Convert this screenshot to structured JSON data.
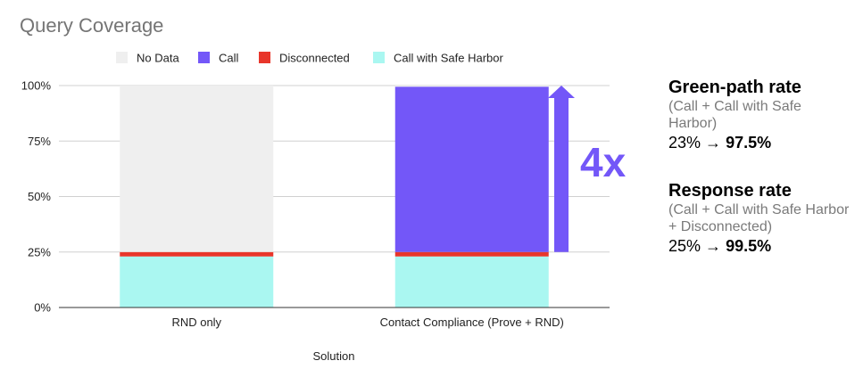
{
  "chart_data": {
    "type": "bar",
    "stacked": true,
    "title": "Query Coverage",
    "xlabel": "Solution",
    "ylabel": "",
    "ylim": [
      0,
      100
    ],
    "yticks": [
      "0%",
      "25%",
      "50%",
      "75%",
      "100%"
    ],
    "categories": [
      "RND only",
      "Contact Compliance (Prove + RND)"
    ],
    "series": [
      {
        "name": "Call with Safe Harbor",
        "color": "#aaf7f1",
        "values": [
          23,
          23
        ]
      },
      {
        "name": "Disconnected",
        "color": "#e8362b",
        "values": [
          2,
          2
        ]
      },
      {
        "name": "Call",
        "color": "#7357f8",
        "values": [
          0,
          74.5
        ]
      },
      {
        "name": "No Data",
        "color": "#efefef",
        "values": [
          75,
          0.5
        ]
      }
    ],
    "legend": {
      "position": "top",
      "order": [
        "No Data",
        "Call",
        "Disconnected",
        "Call with Safe Harbor"
      ]
    },
    "annotation": {
      "text": "4x",
      "color": "#7357f8",
      "arrow_from": 25,
      "arrow_to": 100
    },
    "grid": true
  },
  "metrics": [
    {
      "title": "Green-path rate",
      "subtitle": "(Call + Call with Safe Harbor)",
      "from": "23%",
      "arrow": "→",
      "to": "97.5%"
    },
    {
      "title": "Response rate",
      "subtitle": "(Call + Call with Safe Harbor + Disconnected)",
      "from": "25%",
      "arrow": "→",
      "to": "99.5%"
    }
  ]
}
